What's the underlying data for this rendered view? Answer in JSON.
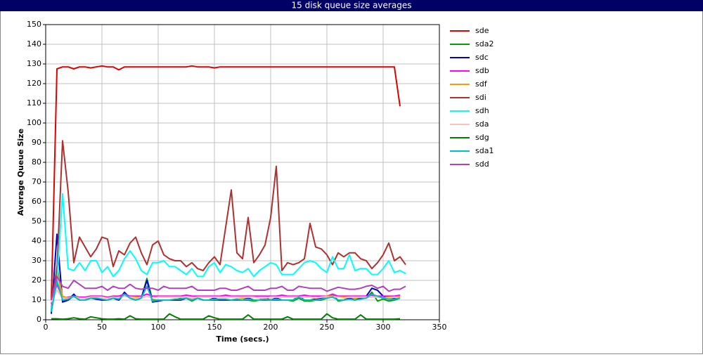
{
  "chart_data": {
    "type": "line",
    "title": "15 disk queue size averages",
    "x_label": "Time (secs.)",
    "y_label": "Average Queue Size",
    "xlim": [
      0,
      350
    ],
    "xticks": [
      0,
      50,
      100,
      150,
      200,
      250,
      300,
      350
    ],
    "ylim": [
      0,
      150
    ],
    "yticks": [
      0,
      10,
      20,
      30,
      40,
      50,
      60,
      70,
      80,
      90,
      100,
      110,
      120,
      130,
      140,
      150
    ],
    "grid": true,
    "legend": "right",
    "x": [
      5,
      10,
      15,
      20,
      25,
      30,
      35,
      40,
      45,
      50,
      55,
      60,
      65,
      70,
      75,
      80,
      85,
      90,
      95,
      100,
      105,
      110,
      115,
      120,
      125,
      130,
      135,
      140,
      145,
      150,
      155,
      160,
      165,
      170,
      175,
      180,
      185,
      190,
      195,
      200,
      205,
      210,
      215,
      220,
      225,
      230,
      235,
      240,
      245,
      250,
      255,
      260,
      265,
      270,
      275,
      280,
      285,
      290,
      295,
      300,
      305,
      310,
      315,
      320
    ],
    "series": [
      {
        "name": "sde",
        "color": "#e00000",
        "values": [
          10,
          127.5,
          128.5,
          128.5,
          127.5,
          128.5,
          128.5,
          128,
          128.5,
          129,
          128.5,
          128.5,
          127,
          128.5,
          128.5,
          128.5,
          128.5,
          128.5,
          128.5,
          128.5,
          128.5,
          128.5,
          128.5,
          128.5,
          128.5,
          129,
          128.5,
          128.5,
          128.5,
          128,
          128.5,
          128.5,
          128.5,
          128.5,
          128.5,
          128.5,
          128.5,
          128.5,
          128.5,
          128.5,
          128.5,
          128.5,
          128.5,
          128.5,
          128.5,
          128.5,
          128.5,
          128.5,
          128.5,
          128.5,
          128.5,
          128.5,
          128.5,
          128.5,
          128.5,
          128.5,
          128.5,
          128.5,
          128.5,
          128.5,
          128.5,
          128.5,
          108.5,
          null
        ]
      },
      {
        "name": "sda2",
        "color": "#00a000",
        "values": [
          5,
          27,
          10,
          10,
          12,
          10,
          10,
          11,
          11,
          10,
          10,
          11,
          10,
          13,
          11,
          10,
          11,
          21,
          10,
          10,
          10,
          10,
          10,
          11,
          11,
          9.5,
          11,
          10,
          10,
          10,
          10,
          10,
          10,
          10,
          10,
          10,
          9.5,
          10,
          10,
          10,
          10,
          10,
          10,
          9.5,
          11,
          9.5,
          9.5,
          10,
          10,
          11,
          13,
          9.5,
          10,
          10.5,
          10,
          11,
          11,
          14,
          9.5,
          10.5,
          9.5,
          10,
          11,
          null
        ]
      },
      {
        "name": "sdc",
        "color": "#0000d0",
        "values": [
          3,
          43.5,
          9,
          10,
          13,
          10,
          10,
          11,
          10.5,
          10,
          10,
          11,
          10,
          14,
          11,
          10,
          11,
          20,
          9,
          9.5,
          10,
          10,
          10,
          10,
          11,
          10,
          11,
          10,
          10,
          11,
          10,
          10,
          10,
          10.5,
          10,
          11,
          10,
          10,
          11,
          10,
          11,
          10,
          10,
          10,
          12,
          10,
          10,
          10.5,
          11,
          11,
          12,
          10,
          10,
          11,
          10,
          11,
          12,
          16,
          15,
          12,
          11,
          11,
          11.5,
          null
        ]
      },
      {
        "name": "sdb",
        "color": "#ff00ff",
        "values": [
          8,
          18,
          11,
          11.5,
          12,
          11.5,
          11.5,
          12,
          12,
          12,
          11.5,
          12,
          12,
          13,
          12,
          12,
          12,
          13,
          12,
          12,
          12,
          12,
          12,
          12,
          12.5,
          12,
          12,
          12,
          12,
          12,
          12,
          12.5,
          12,
          12,
          12,
          12,
          12,
          12,
          12,
          12,
          12,
          12.5,
          12,
          12,
          12,
          12.5,
          12,
          12,
          12,
          12,
          13,
          12,
          12,
          12,
          12,
          12,
          12,
          12.5,
          12,
          12,
          12,
          12,
          12.5,
          null
        ]
      },
      {
        "name": "sdf",
        "color": "#ff9900",
        "values": [
          10,
          25,
          12,
          11,
          12,
          11,
          11,
          11.5,
          11.5,
          11.5,
          11,
          11.5,
          11,
          12,
          11.5,
          11.5,
          11,
          12,
          11,
          11.5,
          11.5,
          11.5,
          11.5,
          11.5,
          11,
          11,
          11.5,
          11.5,
          11.5,
          11.5,
          11.5,
          11.5,
          11.5,
          11.5,
          11,
          11.5,
          11.5,
          11,
          11,
          11.5,
          11.5,
          11.5,
          11.5,
          11.5,
          11.5,
          11.5,
          11.5,
          11,
          11.5,
          12,
          12,
          11.5,
          11.5,
          11.5,
          11,
          11.5,
          11.5,
          11.5,
          11.5,
          11,
          11.5,
          11.5,
          11.5,
          null
        ]
      },
      {
        "name": "sdi",
        "color": "#b03030",
        "values": [
          10,
          25,
          91,
          65,
          29,
          42,
          37,
          32,
          36,
          42,
          41,
          27,
          35,
          33,
          39,
          42,
          34,
          28,
          38,
          40,
          33,
          31,
          30,
          30,
          27,
          29,
          26,
          25,
          29,
          32,
          28,
          47,
          66,
          34,
          31,
          52,
          29,
          33,
          38,
          52,
          78,
          25,
          29,
          28,
          29,
          31,
          49,
          37,
          36,
          33,
          28,
          34,
          32,
          34,
          34,
          31,
          30,
          26,
          29,
          33,
          39,
          30,
          32,
          28
        ]
      },
      {
        "name": "sdh",
        "color": "#00ffff",
        "values": [
          5,
          20,
          64,
          26,
          25,
          29,
          25,
          30,
          30,
          24,
          27,
          22,
          25,
          31,
          35,
          31,
          25,
          23,
          29,
          29,
          30,
          27,
          27,
          25,
          23,
          26,
          22,
          22,
          27,
          29,
          24,
          28,
          27,
          25,
          24,
          26,
          22,
          25,
          27,
          29,
          28,
          23,
          23,
          23,
          26,
          29,
          30,
          29,
          26,
          24,
          32,
          26,
          26,
          33,
          25,
          26,
          26,
          23,
          23,
          26,
          30,
          24,
          25,
          23.5
        ]
      },
      {
        "name": "sda",
        "color": "#ffc0c0",
        "values": [
          9,
          15,
          11,
          11,
          11.5,
          11,
          11,
          11.5,
          11.5,
          11.5,
          11,
          11.5,
          11,
          12,
          11.5,
          11,
          11,
          12,
          11,
          11.5,
          11.5,
          11.5,
          11.5,
          11.5,
          11.5,
          11,
          11.5,
          11.5,
          11.5,
          11.5,
          11.5,
          11.5,
          11.5,
          11.5,
          11.5,
          11.5,
          11.5,
          11,
          11,
          11.5,
          11.5,
          11.5,
          11.5,
          11.5,
          11.5,
          11.5,
          11.5,
          11,
          11.5,
          11.5,
          11.5,
          11.5,
          11,
          11.5,
          11.5,
          11.5,
          11.5,
          11.5,
          11.5,
          11,
          11,
          11.5,
          11,
          null
        ]
      },
      {
        "name": "sdg",
        "color": "#008000",
        "values": [
          0.5,
          0.5,
          0.3,
          0.5,
          1,
          0.5,
          0.3,
          1.5,
          1,
          0.5,
          0.3,
          0.3,
          0.5,
          0.3,
          2,
          0.5,
          0.3,
          0.3,
          0.3,
          0.3,
          0.3,
          3,
          1.5,
          0.3,
          0.3,
          0.3,
          0.3,
          0.3,
          2,
          1,
          0.3,
          0.3,
          0.3,
          0.3,
          0.3,
          2.5,
          0.3,
          0.3,
          0.3,
          0.3,
          0.3,
          0.3,
          1.5,
          0.3,
          0.3,
          0.3,
          0.3,
          0.3,
          0.3,
          3,
          1,
          0.3,
          0.3,
          0.3,
          0.3,
          2.5,
          0.3,
          0.3,
          0.3,
          0.3,
          0.3,
          0.3,
          0.5,
          null
        ]
      },
      {
        "name": "sda1",
        "color": "#00c0c0",
        "values": [
          4,
          20,
          10,
          10.5,
          12,
          10,
          10,
          11,
          11,
          10.5,
          10,
          11,
          10.5,
          13,
          11,
          10,
          11,
          17,
          9.5,
          10,
          10,
          10,
          10.5,
          10.5,
          11,
          10,
          11,
          10,
          10,
          10.5,
          10.5,
          10.5,
          10,
          10.5,
          10,
          10.5,
          10,
          10,
          10.5,
          10,
          10.5,
          10,
          10,
          10,
          11.5,
          10,
          10,
          10,
          10.5,
          11,
          11.5,
          10,
          10,
          10.5,
          10,
          10.5,
          11,
          13,
          12,
          11,
          10.5,
          10.5,
          11,
          null
        ]
      },
      {
        "name": "sdd",
        "color": "#b040c0",
        "values": [
          10,
          22,
          17,
          16,
          20,
          18,
          16,
          16,
          16,
          17,
          15,
          17,
          16,
          16,
          18,
          16,
          15.5,
          16,
          16,
          15,
          17,
          16,
          16,
          16,
          16,
          17,
          15,
          15,
          15,
          15,
          16,
          16,
          15,
          15,
          16,
          17,
          15,
          15,
          15,
          16,
          16,
          17,
          15,
          15,
          17,
          16.5,
          16,
          16,
          16,
          14.5,
          15.5,
          16.5,
          16,
          15.5,
          15.5,
          16,
          17,
          17.5,
          16,
          17,
          14.5,
          15.5,
          15.5,
          17
        ]
      }
    ]
  }
}
